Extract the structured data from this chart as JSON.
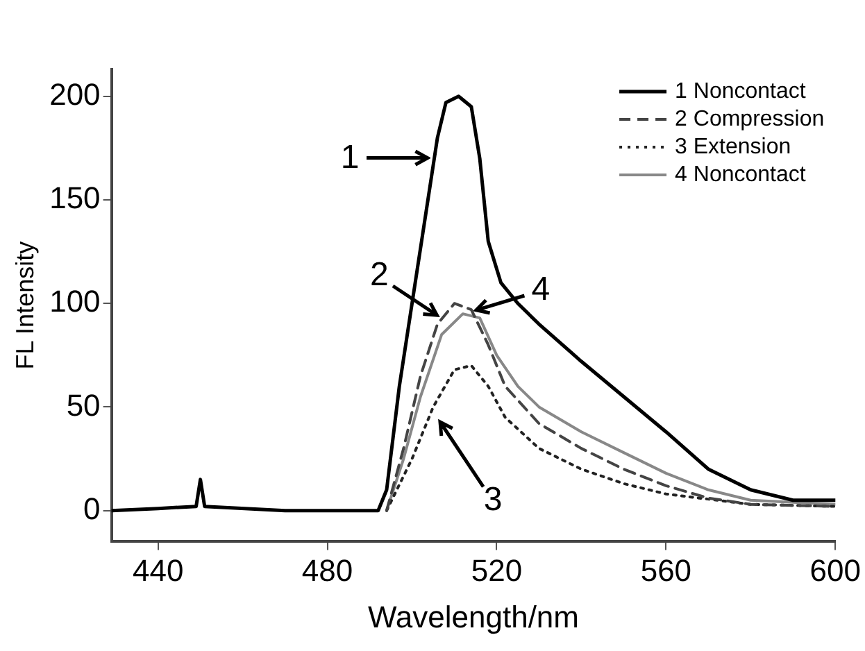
{
  "chart_data": {
    "type": "line",
    "xlabel": "Wavelength/nm",
    "ylabel": "FL Intensity",
    "xlim": [
      429,
      600
    ],
    "ylim": [
      -15,
      213
    ],
    "xticks": [
      440,
      480,
      520,
      560,
      600
    ],
    "yticks": [
      0,
      50,
      100,
      150,
      200
    ],
    "grid": false,
    "legend": "top right",
    "marker": "none",
    "series": [
      {
        "name": "1 Noncontact",
        "color": "#000000",
        "line_style": "solid",
        "x": [
          429,
          440,
          449,
          450,
          451,
          470,
          492,
          494,
          497,
          500,
          503,
          506,
          508,
          511,
          514,
          516,
          518,
          521,
          525,
          530,
          540,
          550,
          560,
          570,
          580,
          590,
          600
        ],
        "values": [
          0,
          1,
          2,
          15,
          2,
          0,
          0,
          10,
          60,
          100,
          140,
          180,
          197,
          200,
          195,
          170,
          130,
          110,
          100,
          90,
          72,
          55,
          38,
          20,
          10,
          5,
          5
        ]
      },
      {
        "name": "2 Compression",
        "color": "#444444",
        "line_style": "dashed",
        "x": [
          494,
          498,
          502,
          506,
          510,
          514,
          518,
          522,
          530,
          540,
          550,
          560,
          570,
          580,
          600
        ],
        "values": [
          0,
          30,
          65,
          90,
          100,
          97,
          80,
          60,
          42,
          30,
          20,
          12,
          6,
          3,
          2
        ]
      },
      {
        "name": "3 Extension",
        "color": "#222222",
        "line_style": "dotted",
        "x": [
          494,
          500,
          505,
          510,
          514,
          518,
          522,
          530,
          540,
          550,
          560,
          580,
          600
        ],
        "values": [
          0,
          25,
          50,
          68,
          70,
          60,
          45,
          30,
          20,
          13,
          8,
          3,
          2
        ]
      },
      {
        "name": "4 Noncontact",
        "color": "#888888",
        "line_style": "solid",
        "x": [
          494,
          498,
          502,
          507,
          512,
          516,
          520,
          525,
          530,
          540,
          550,
          560,
          570,
          580,
          600
        ],
        "values": [
          0,
          25,
          55,
          85,
          95,
          93,
          75,
          60,
          50,
          38,
          28,
          18,
          10,
          5,
          3
        ]
      }
    ],
    "annotations": [
      {
        "text": "1",
        "x": 505,
        "y": 170
      },
      {
        "text": "2",
        "x": 507,
        "y": 93
      },
      {
        "text": "3",
        "x": 506,
        "y": 45
      },
      {
        "text": "4",
        "x": 514,
        "y": 96
      }
    ]
  }
}
